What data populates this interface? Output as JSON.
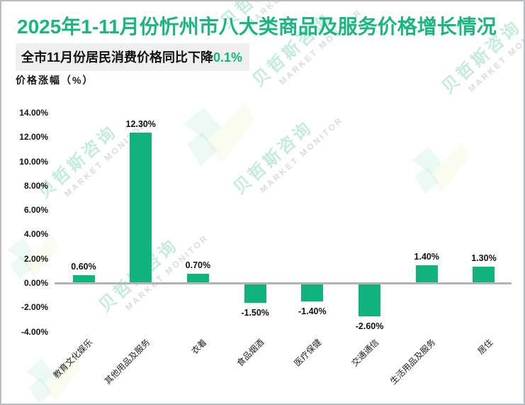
{
  "page": {
    "title": "2025年1-11月份忻州市八大类商品及服务价格增长情况",
    "subtitle_prefix": "全市11月份居民消费价格同比下降",
    "subtitle_highlight": "0.1%",
    "axis_title": "价格涨幅（%）"
  },
  "watermark": {
    "cn": "贝哲斯咨询",
    "en": "MARKET MONITOR"
  },
  "colors": {
    "title_green": "#1ab581",
    "bar_green": "#10b27e",
    "highlight_green": "#10b57f",
    "subtitle_bg": "#efefef",
    "baseline_gray": "#b3b3b3",
    "border_gray": "#b7bdc1"
  },
  "chart_data": {
    "type": "bar",
    "title": "2025年1-11月份忻州市八大类商品及服务价格增长情况",
    "categories": [
      "教育文化娱乐",
      "其他用品及服务",
      "衣着",
      "食品烟酒",
      "医疗保健",
      "交通通信",
      "生活用品及服务",
      "居住"
    ],
    "values": [
      0.6,
      12.3,
      0.7,
      -1.5,
      -1.4,
      -2.6,
      1.4,
      1.3
    ],
    "value_labels": [
      "0.60%",
      "12.30%",
      "0.70%",
      "-1.50%",
      "-1.40%",
      "-2.60%",
      "1.40%",
      "1.30%"
    ],
    "xlabel": "",
    "ylabel": "价格涨幅（%）",
    "ylim": [
      -4,
      14
    ],
    "ytick_step": 2,
    "ytick_labels": [
      "14.00%",
      "12.00%",
      "10.00%",
      "8.00%",
      "6.00%",
      "4.00%",
      "2.00%",
      "0.00%",
      "-2.00%",
      "-4.00%"
    ],
    "grid": false,
    "legend": false,
    "bar_color": "#10b27e"
  }
}
